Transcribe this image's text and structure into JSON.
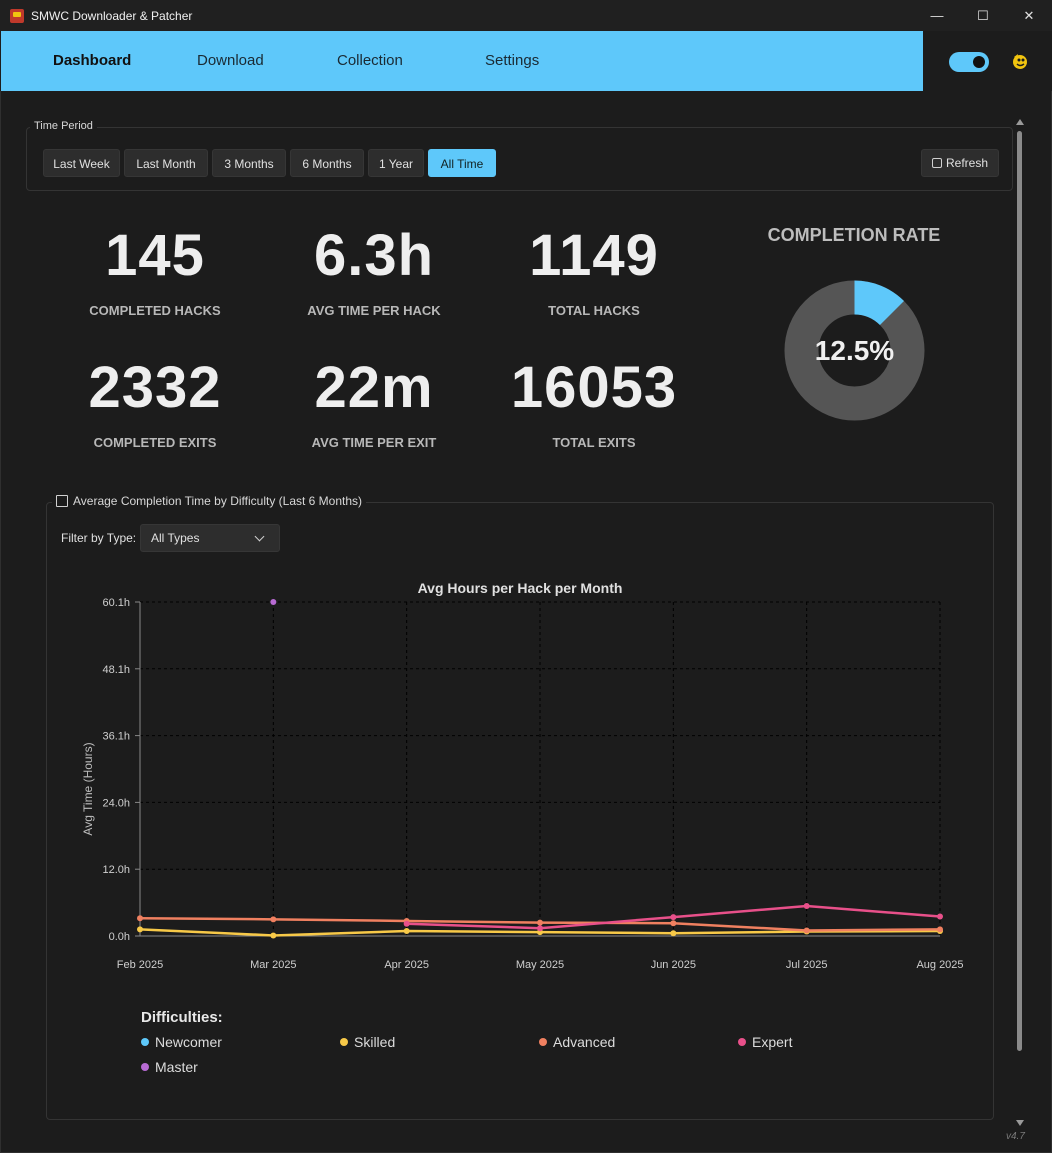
{
  "app": {
    "title": "SMWC Downloader & Patcher",
    "version": "v4.7"
  },
  "window_controls": {
    "minimize": "—",
    "maximize": "☐",
    "close": "✕"
  },
  "nav": {
    "tabs": [
      "Dashboard",
      "Download",
      "Collection",
      "Settings"
    ],
    "active": "Dashboard",
    "accent": "#5ec8fa"
  },
  "time_period": {
    "legend": "Time Period",
    "buttons": [
      "Last Week",
      "Last Month",
      "3 Months",
      "6 Months",
      "1 Year",
      "All Time"
    ],
    "active": "All Time",
    "refresh_label": "Refresh"
  },
  "stats": [
    {
      "value": "145",
      "label": "COMPLETED HACKS"
    },
    {
      "value": "6.3h",
      "label": "AVG TIME PER HACK"
    },
    {
      "value": "1149",
      "label": "TOTAL HACKS"
    },
    {
      "value": "2332",
      "label": "COMPLETED EXITS"
    },
    {
      "value": "22m",
      "label": "AVG TIME PER EXIT"
    },
    {
      "value": "16053",
      "label": "TOTAL EXITS"
    }
  ],
  "completion": {
    "title": "COMPLETION RATE",
    "text": "12.5%",
    "fraction": 0.125,
    "fill_color": "#5ec8fa",
    "track_color": "#555555"
  },
  "chart_section": {
    "legend": "Average Completion Time by Difficulty (Last 6 Months)",
    "filter_label": "Filter by Type:",
    "filter_value": "All Types"
  },
  "chart_data": {
    "type": "line",
    "title": "Avg Hours per Hack per Month",
    "ylabel": "Avg Time (Hours)",
    "xlabel": "",
    "categories": [
      "Feb 2025",
      "Mar 2025",
      "Apr 2025",
      "May 2025",
      "Jun 2025",
      "Jul 2025",
      "Aug 2025"
    ],
    "yticks": [
      "0.0h",
      "12.0h",
      "24.0h",
      "36.1h",
      "48.1h",
      "60.1h"
    ],
    "ylim": [
      0,
      60.1
    ],
    "grid": true,
    "legend_title": "Difficulties:",
    "series": [
      {
        "name": "Newcomer",
        "color": "#5ec8fa",
        "values": [
          null,
          null,
          null,
          null,
          null,
          null,
          null
        ]
      },
      {
        "name": "Skilled",
        "color": "#f7c948",
        "values": [
          1.2,
          0.1,
          0.9,
          0.7,
          0.5,
          0.8,
          0.9
        ]
      },
      {
        "name": "Advanced",
        "color": "#f08060",
        "values": [
          3.2,
          3.0,
          2.7,
          2.4,
          2.3,
          1.0,
          1.2
        ]
      },
      {
        "name": "Expert",
        "color": "#e8508a",
        "values": [
          null,
          null,
          2.2,
          1.4,
          3.4,
          5.4,
          3.5
        ]
      },
      {
        "name": "Master",
        "color": "#b86bd4",
        "values": [
          null,
          60.1,
          null,
          null,
          null,
          null,
          null
        ]
      }
    ]
  }
}
